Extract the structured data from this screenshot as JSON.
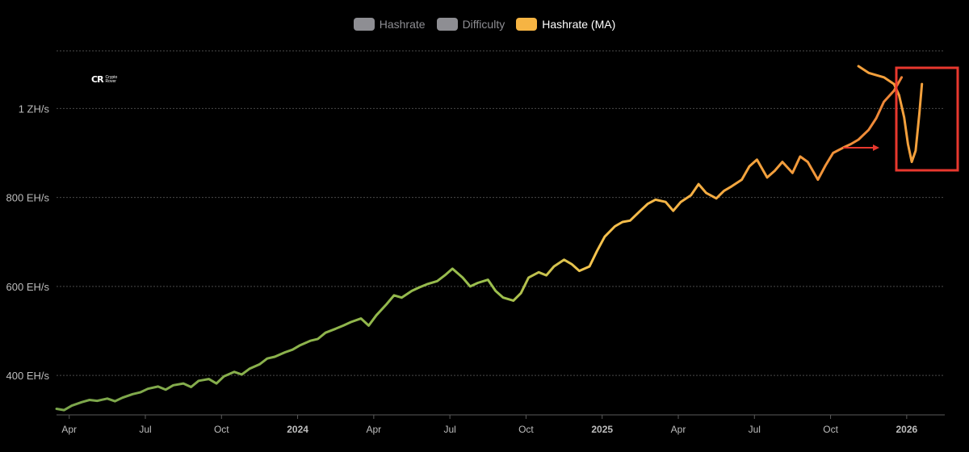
{
  "legend": [
    {
      "label": "Hashrate",
      "color": "#8e8e93",
      "active": false
    },
    {
      "label": "Difficulty",
      "color": "#8e8e93",
      "active": false
    },
    {
      "label": "Hashrate (MA)",
      "color": "#f6b443",
      "active": true
    }
  ],
  "logo": {
    "mark": "CR",
    "text": "Crypto Rover"
  },
  "annotation": {
    "color": "#e8382e"
  },
  "chart_data": {
    "type": "line",
    "series": [
      {
        "name": "Hashrate (MA)",
        "color_gradient": [
          "#7aa44b",
          "#9cbf4d",
          "#f5c44e",
          "#f3a03c",
          "#ec7a35"
        ],
        "x": [
          0,
          0.3,
          0.6,
          1,
          1.3,
          1.6,
          2,
          2.3,
          2.6,
          3,
          3.3,
          3.6,
          4,
          4.3,
          4.6,
          5,
          5.3,
          5.6,
          6,
          6.3,
          6.6,
          7,
          7.3,
          7.6,
          8,
          8.3,
          8.6,
          9,
          9.3,
          9.6,
          10,
          10.3,
          10.6,
          11,
          11.3,
          11.6,
          12,
          12.3,
          12.6,
          13,
          13.3,
          13.6,
          14,
          14.3,
          14.6,
          15,
          15.3,
          15.6,
          16,
          16.3,
          16.6,
          17,
          17.3,
          17.6,
          18,
          18.3,
          18.6,
          19,
          19.3,
          19.6,
          20,
          20.3,
          20.6,
          21,
          21.3,
          21.6,
          22,
          22.3,
          22.6,
          23,
          23.3,
          23.6,
          24,
          24.3,
          24.6,
          25,
          25.3,
          25.6,
          26,
          26.3,
          26.6,
          27,
          27.3,
          27.6,
          28,
          28.3,
          28.6,
          29,
          29.3,
          29.6,
          30,
          30.3,
          30.6,
          31,
          31.3,
          31.6,
          32,
          32.3,
          32.6,
          33,
          33.3,
          33.6,
          34,
          34.1
        ],
        "values": [
          325,
          322,
          332,
          340,
          345,
          343,
          348,
          342,
          350,
          358,
          362,
          370,
          375,
          368,
          378,
          382,
          374,
          388,
          392,
          382,
          398,
          408,
          402,
          415,
          425,
          438,
          442,
          452,
          458,
          468,
          478,
          482,
          496,
          505,
          512,
          520,
          528,
          512,
          535,
          560,
          580,
          575,
          590,
          598,
          605,
          612,
          625,
          640,
          620,
          600,
          608,
          615,
          590,
          575,
          568,
          585,
          620,
          632,
          625,
          645,
          660,
          650,
          635,
          645,
          680,
          712,
          735,
          745,
          748,
          770,
          786,
          795,
          790,
          770,
          790,
          805,
          830,
          810,
          798,
          815,
          825,
          840,
          870,
          885,
          845,
          860,
          880,
          855,
          892,
          880,
          840,
          872,
          900,
          912,
          920,
          930,
          952,
          978,
          1015,
          1040,
          1070,
          1105,
          1120,
          1095
        ],
        "extension": {
          "x": [
            31.6,
            32,
            32.3,
            32.6,
            33,
            33.2,
            33.4,
            33.55,
            33.7,
            33.85,
            34,
            34.1
          ],
          "values": [
            1095,
            1080,
            1075,
            1070,
            1055,
            1030,
            980,
            920,
            880,
            905,
            990,
            1055
          ]
        }
      }
    ],
    "x_ticks": [
      {
        "label": "Apr",
        "x": 0.5,
        "bold": false
      },
      {
        "label": "Jul",
        "x": 3.5,
        "bold": false
      },
      {
        "label": "Oct",
        "x": 6.5,
        "bold": false
      },
      {
        "label": "2024",
        "x": 9.5,
        "bold": true
      },
      {
        "label": "Apr",
        "x": 12.5,
        "bold": false
      },
      {
        "label": "Jul",
        "x": 15.5,
        "bold": false
      },
      {
        "label": "Oct",
        "x": 18.5,
        "bold": false
      },
      {
        "label": "2025",
        "x": 21.5,
        "bold": true
      },
      {
        "label": "Apr",
        "x": 24.5,
        "bold": false
      },
      {
        "label": "Jul",
        "x": 27.5,
        "bold": false
      },
      {
        "label": "Oct",
        "x": 30.5,
        "bold": false
      },
      {
        "label": "2026",
        "x": 33.5,
        "bold": true
      }
    ],
    "y_ticks": [
      {
        "label": "400 EH/s",
        "value": 400
      },
      {
        "label": "600 EH/s",
        "value": 600
      },
      {
        "label": "800 EH/s",
        "value": 800
      },
      {
        "label": "1 ZH/s",
        "value": 1000
      }
    ],
    "ylim": [
      315,
      1135
    ],
    "xlim": [
      0,
      35
    ],
    "grid": true,
    "legend_position": "top-center"
  }
}
